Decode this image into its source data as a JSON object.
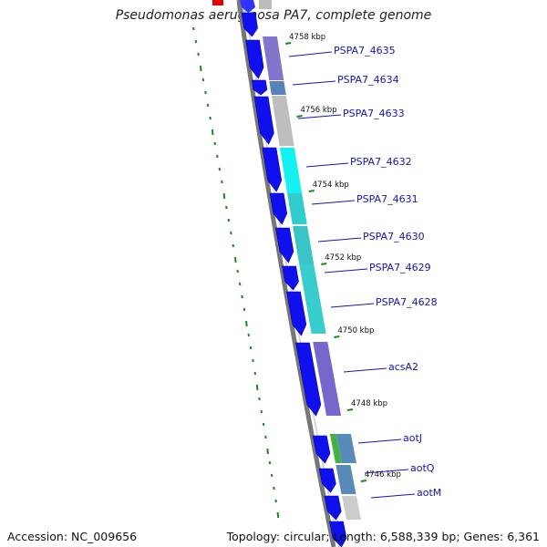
{
  "title": "Pseudomonas aeruginosa PA7, complete genome",
  "footer": {
    "accession": "Accession: NC_009656",
    "stats": "Topology: circular; Length: 6,588,339 bp; Genes: 6,361"
  },
  "colors": {
    "backbone": "#7a7a7a",
    "forward_strand_gene": "#1010ee",
    "gc_skew_mark": "#1a8a1a",
    "label_text": "#1414b4",
    "tick_mark": "#1a8a1a"
  },
  "kbp_ticks": [
    "4758 kbp",
    "4756 kbp",
    "4754 kbp",
    "4752 kbp",
    "4750 kbp",
    "4748 kbp",
    "4746 kbp"
  ],
  "genes": [
    {
      "label": "PSPA7_4635"
    },
    {
      "label": "PSPA7_4634"
    },
    {
      "label": "PSPA7_4633"
    },
    {
      "label": "PSPA7_4632"
    },
    {
      "label": "PSPA7_4631"
    },
    {
      "label": "PSPA7_4630"
    },
    {
      "label": "PSPA7_4629"
    },
    {
      "label": "PSPA7_4628"
    },
    {
      "label": "acsA2"
    },
    {
      "label": "aotJ"
    },
    {
      "label": "aotQ"
    },
    {
      "label": "aotM"
    }
  ]
}
